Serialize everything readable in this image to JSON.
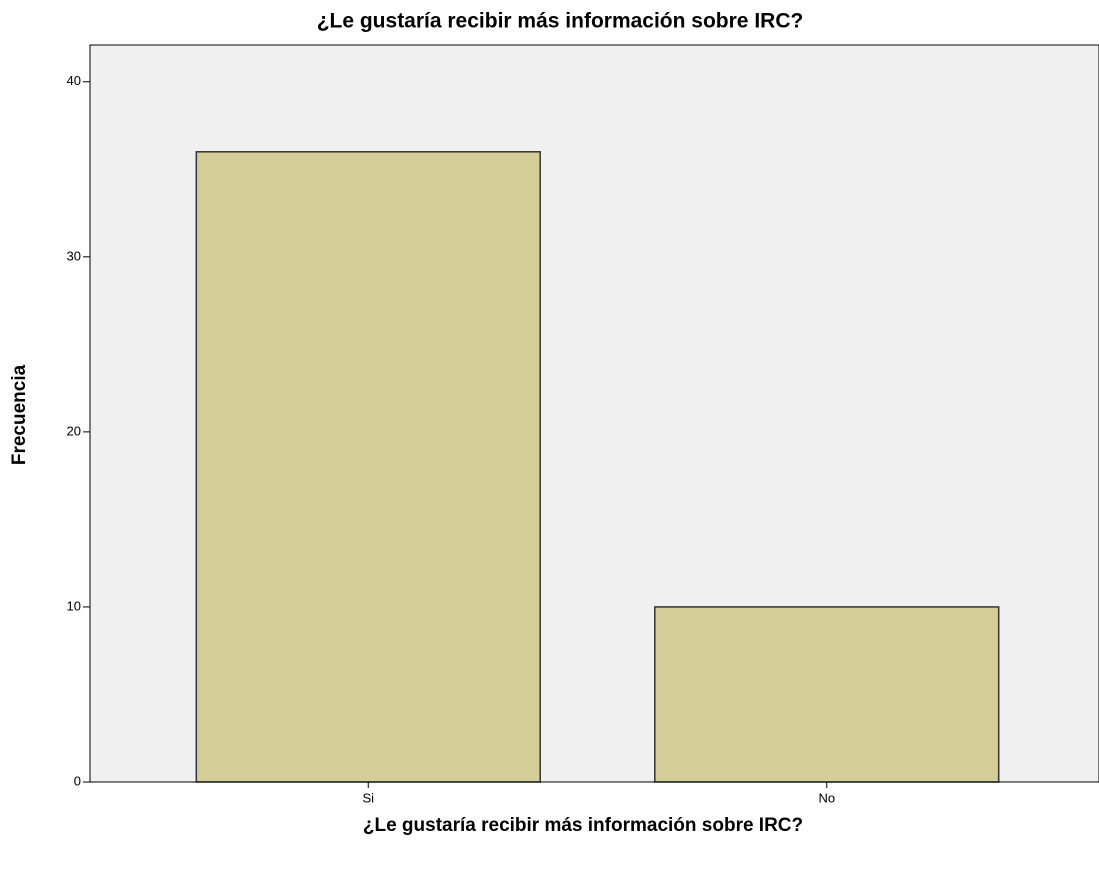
{
  "chart_data": {
    "type": "bar",
    "title": "¿Le gustaría recibir más información sobre IRC?",
    "xlabel": "¿Le gustaría recibir más información sobre IRC?",
    "ylabel": "Frecuencia",
    "categories": [
      "Si",
      "No"
    ],
    "values": [
      36,
      10
    ],
    "color": "#d3ce97",
    "ylim": [
      0,
      42.1
    ],
    "yticks": [
      0,
      10,
      20,
      30,
      40
    ],
    "grid": false
  }
}
